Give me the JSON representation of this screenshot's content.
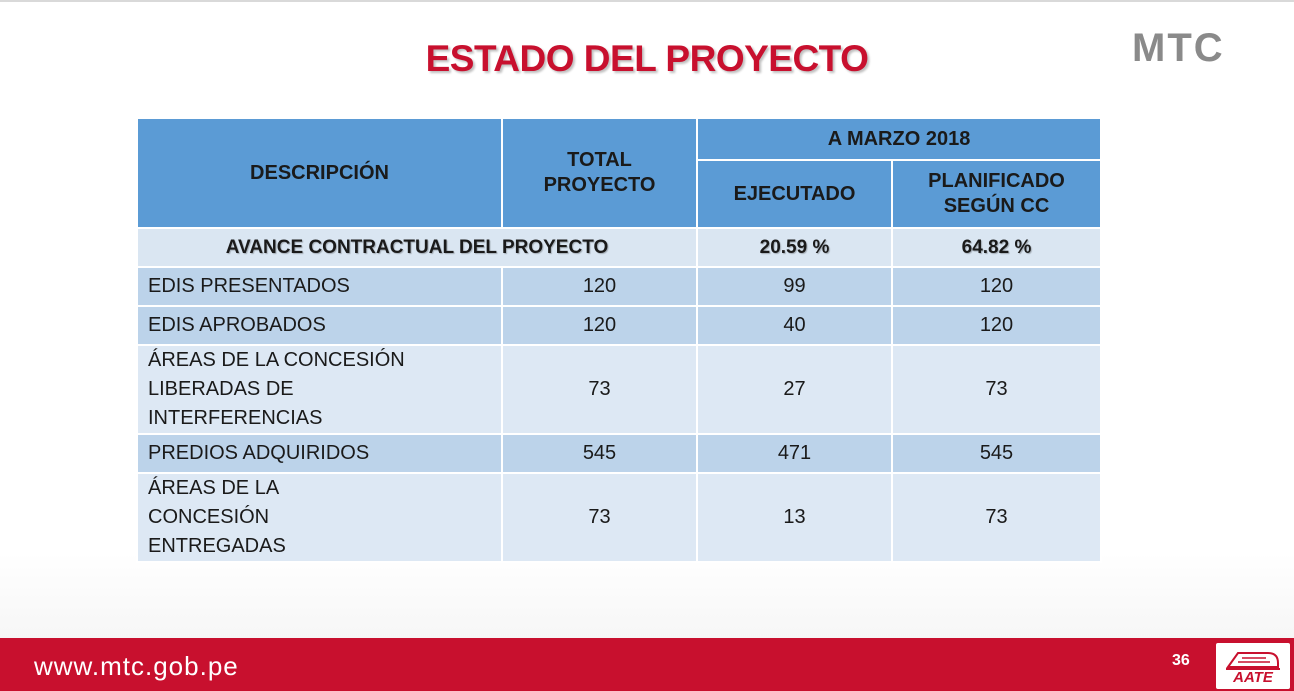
{
  "slide": {
    "title": "ESTADO DEL PROYECTO",
    "logo": "MTC",
    "footer_url": "www.mtc.gob.pe",
    "page_number": "36",
    "aate_logo_text": "AATE"
  },
  "colors": {
    "title_red": "#c8102e",
    "footer_red": "#c8102e",
    "header_blue": "#5b9bd5",
    "row_dark": "#bcd3ea",
    "row_light": "#dde8f4",
    "logo_gray": "#8a8a8a"
  },
  "table": {
    "headers": {
      "description": "DESCRIPCIÓN",
      "total": "TOTAL PROYECTO",
      "period": "A MARZO 2018",
      "executed": "EJECUTADO",
      "planned": "PLANIFICADO SEGÚN CC"
    },
    "summary": {
      "label": "AVANCE CONTRACTUAL DEL PROYECTO",
      "executed": "20.59 %",
      "planned": "64.82 %"
    },
    "rows": [
      {
        "label": "EDIS PRESENTADOS",
        "total": "120",
        "executed": "99",
        "planned": "120"
      },
      {
        "label": "EDIS APROBADOS",
        "total": "120",
        "executed": "40",
        "planned": "120"
      },
      {
        "label": "ÁREAS DE LA CONCESIÓN LIBERADAS DE INTERFERENCIAS",
        "total": "73",
        "executed": "27",
        "planned": "73"
      },
      {
        "label": "PREDIOS ADQUIRIDOS",
        "total": "545",
        "executed": "471",
        "planned": "545"
      },
      {
        "label": "ÁREAS DE LA CONCESIÓN ENTREGADAS",
        "total": "73",
        "executed": "13",
        "planned": "73"
      }
    ]
  }
}
